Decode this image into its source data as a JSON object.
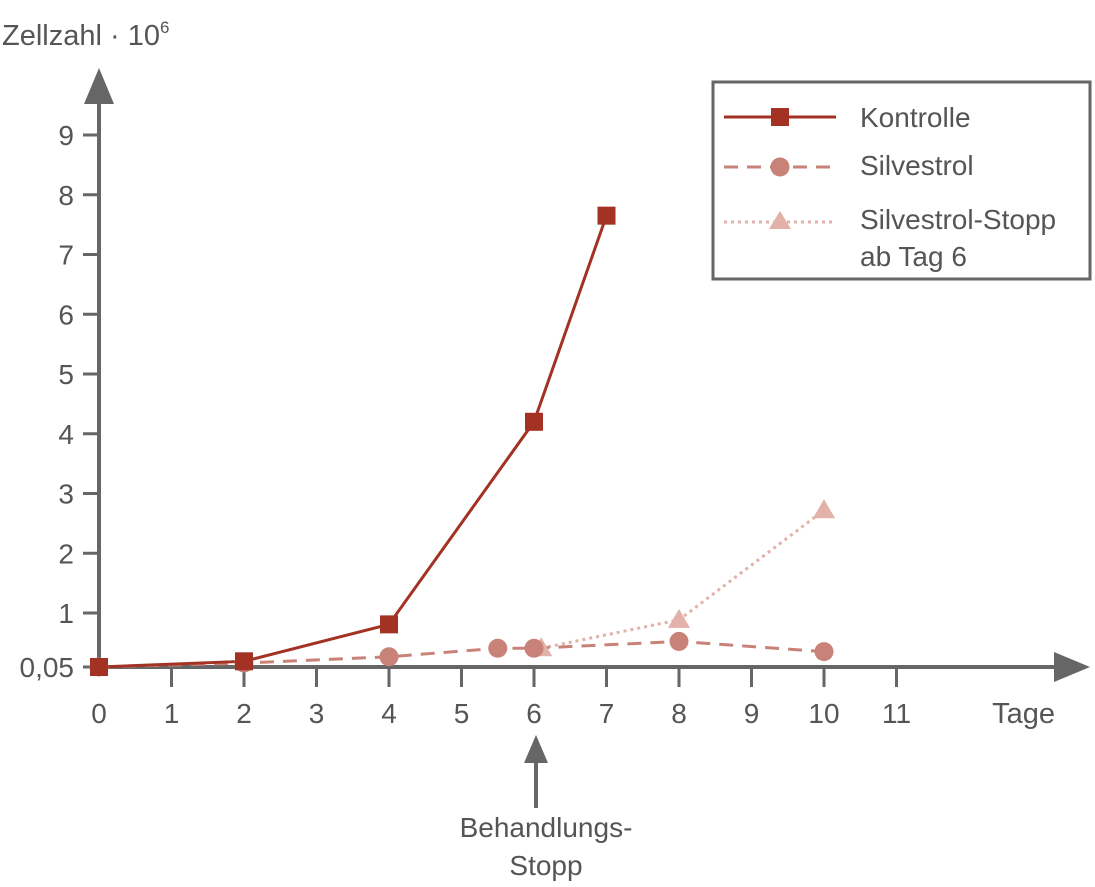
{
  "chart_data": {
    "type": "line",
    "ylabel": "Zellzahl · 10",
    "ylabel_sup": "6",
    "xlabel": "Tage",
    "x_ticks": [
      0,
      1,
      2,
      3,
      4,
      5,
      6,
      7,
      8,
      9,
      10,
      11
    ],
    "x_tick_labels": [
      "0",
      "1",
      "2",
      "3",
      "4",
      "5",
      "6",
      "7",
      "8",
      "9",
      "10",
      "11"
    ],
    "y_ticks": [
      0.05,
      1,
      2,
      3,
      4,
      5,
      6,
      7,
      8,
      9
    ],
    "y_tick_labels": [
      "0,05",
      "1",
      "2",
      "3",
      "4",
      "5",
      "6",
      "7",
      "8",
      "9"
    ],
    "grid": false,
    "legend_position": "top-right",
    "colors": {
      "axis": "#666666",
      "kontrolle": "#a33224",
      "silvestrol": "#c98278",
      "stopp": "#e2b1a9"
    },
    "series": [
      {
        "name": "Kontrolle",
        "marker": "square",
        "line": "solid",
        "points": [
          [
            0,
            0.05
          ],
          [
            2,
            0.15
          ],
          [
            4,
            0.8
          ],
          [
            6,
            4.2
          ],
          [
            7,
            7.65
          ]
        ]
      },
      {
        "name": "Silvestrol",
        "marker": "circle",
        "line": "dashed",
        "points": [
          [
            0,
            0.05
          ],
          [
            2,
            0.12
          ],
          [
            4,
            0.23
          ],
          [
            5.5,
            0.38
          ],
          [
            6,
            0.38
          ],
          [
            8,
            0.5
          ],
          [
            10,
            0.32
          ]
        ]
      },
      {
        "name_lines": [
          "Silvestrol-Stopp",
          "ab Tag 6"
        ],
        "marker": "triangle",
        "line": "dotted",
        "points": [
          [
            6.1,
            0.38
          ],
          [
            8,
            0.88
          ],
          [
            10,
            2.72
          ]
        ]
      }
    ],
    "annotation": {
      "x": 6,
      "lines": [
        "Behandlungs-",
        "Stopp"
      ]
    }
  }
}
